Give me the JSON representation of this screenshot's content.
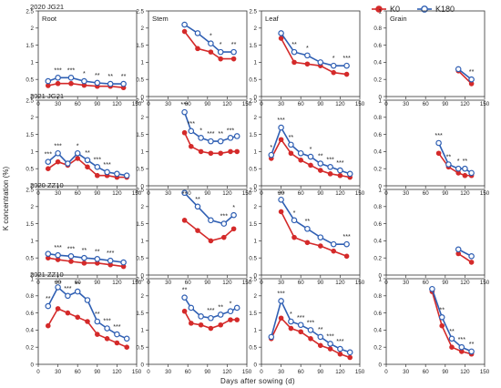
{
  "figure": {
    "ylabel": "K concentration (%)",
    "xlabel": "Days after sowing (d)"
  },
  "legend": {
    "position": "top-right",
    "items": [
      {
        "label": "K0",
        "color": "#d42a2a",
        "marker": "filled-circle"
      },
      {
        "label": "K180",
        "color": "#2f5fb3",
        "marker": "open-circle"
      }
    ]
  },
  "chart_data": [
    {
      "type": "line",
      "row_label": "2020 JG21",
      "organ": "Root",
      "xlim": [
        0,
        150
      ],
      "ylim": [
        0,
        2.5
      ],
      "x": [
        15,
        30,
        50,
        70,
        90,
        110,
        130
      ],
      "series": [
        {
          "name": "K0",
          "values": [
            0.32,
            0.38,
            0.38,
            0.33,
            0.3,
            0.3,
            0.26
          ]
        },
        {
          "name": "K180",
          "values": [
            0.45,
            0.55,
            0.55,
            0.45,
            0.4,
            0.37,
            0.37
          ]
        }
      ],
      "annotations": [
        "",
        "***",
        "***",
        "*",
        "**",
        "**",
        "**"
      ]
    },
    {
      "type": "line",
      "row_label": "",
      "organ": "Stem",
      "xlim": [
        0,
        150
      ],
      "ylim": [
        0,
        2.5
      ],
      "x": [
        55,
        75,
        95,
        110,
        130
      ],
      "series": [
        {
          "name": "K0",
          "values": [
            1.9,
            1.4,
            1.3,
            1.1,
            1.1
          ]
        },
        {
          "name": "K180",
          "values": [
            2.1,
            1.85,
            1.55,
            1.3,
            1.3
          ]
        }
      ],
      "annotations": [
        "",
        "",
        "*",
        "*",
        "**"
      ]
    },
    {
      "type": "line",
      "row_label": "",
      "organ": "Leaf",
      "xlim": [
        0,
        150
      ],
      "ylim": [
        0,
        2.5
      ],
      "x": [
        30,
        50,
        70,
        90,
        110,
        130
      ],
      "series": [
        {
          "name": "K0",
          "values": [
            1.7,
            1.0,
            0.95,
            0.9,
            0.7,
            0.65
          ]
        },
        {
          "name": "K180",
          "values": [
            1.85,
            1.3,
            1.2,
            1.0,
            0.9,
            0.9
          ]
        }
      ],
      "annotations": [
        "",
        "**",
        "*",
        "",
        "*",
        "***"
      ]
    },
    {
      "type": "line",
      "row_label": "",
      "organ": "Grain",
      "xlim": [
        0,
        150
      ],
      "ylim": [
        0,
        1
      ],
      "x": [
        110,
        130
      ],
      "series": [
        {
          "name": "K0",
          "values": [
            0.3,
            0.15
          ]
        },
        {
          "name": "K180",
          "values": [
            0.32,
            0.2
          ]
        }
      ],
      "annotations": [
        "",
        "**"
      ]
    },
    {
      "type": "line",
      "row_label": "2021 JG21",
      "organ": "",
      "xlim": [
        0,
        150
      ],
      "ylim": [
        0,
        2.5
      ],
      "x": [
        15,
        30,
        45,
        60,
        75,
        90,
        105,
        120,
        135
      ],
      "series": [
        {
          "name": "K0",
          "values": [
            0.5,
            0.7,
            0.6,
            0.8,
            0.55,
            0.3,
            0.3,
            0.25,
            0.25
          ]
        },
        {
          "name": "K180",
          "values": [
            0.7,
            0.95,
            0.65,
            0.95,
            0.75,
            0.55,
            0.4,
            0.35,
            0.3
          ]
        }
      ],
      "annotations": [
        "***",
        "***",
        "",
        "*",
        "**",
        "***",
        "***",
        "",
        ""
      ]
    },
    {
      "type": "line",
      "row_label": "",
      "organ": "",
      "xlim": [
        0,
        150
      ],
      "ylim": [
        0,
        2.5
      ],
      "x": [
        55,
        65,
        80,
        95,
        110,
        125,
        135
      ],
      "series": [
        {
          "name": "K0",
          "values": [
            1.55,
            1.15,
            1.0,
            0.95,
            0.95,
            1.0,
            1.0
          ]
        },
        {
          "name": "K180",
          "values": [
            2.15,
            1.6,
            1.4,
            1.3,
            1.3,
            1.4,
            1.45
          ]
        }
      ],
      "annotations": [
        "***",
        "***",
        "*",
        "***",
        "**",
        "***",
        ""
      ]
    },
    {
      "type": "line",
      "row_label": "",
      "organ": "",
      "xlim": [
        0,
        150
      ],
      "ylim": [
        0,
        2.5
      ],
      "x": [
        15,
        30,
        45,
        60,
        75,
        90,
        105,
        120,
        135
      ],
      "series": [
        {
          "name": "K0",
          "values": [
            0.8,
            1.35,
            0.95,
            0.75,
            0.6,
            0.45,
            0.35,
            0.3,
            0.25
          ]
        },
        {
          "name": "K180",
          "values": [
            0.9,
            1.7,
            1.2,
            0.95,
            0.85,
            0.65,
            0.55,
            0.45,
            0.35
          ]
        }
      ],
      "annotations": [
        "*",
        "***",
        "**",
        "",
        "*",
        "**",
        "***",
        "***",
        ""
      ]
    },
    {
      "type": "line",
      "row_label": "",
      "organ": "",
      "xlim": [
        0,
        150
      ],
      "ylim": [
        0,
        1
      ],
      "x": [
        80,
        95,
        110,
        120,
        130
      ],
      "series": [
        {
          "name": "K0",
          "values": [
            0.38,
            0.22,
            0.15,
            0.12,
            0.12
          ]
        },
        {
          "name": "K180",
          "values": [
            0.5,
            0.25,
            0.2,
            0.2,
            0.15
          ]
        }
      ],
      "annotations": [
        "***",
        "**",
        "*",
        "**",
        ""
      ]
    },
    {
      "type": "line",
      "row_label": "2020 ZZ10",
      "organ": "",
      "xlim": [
        0,
        150
      ],
      "ylim": [
        0,
        2.5
      ],
      "x": [
        15,
        30,
        50,
        70,
        90,
        110,
        130
      ],
      "series": [
        {
          "name": "K0",
          "values": [
            0.5,
            0.45,
            0.4,
            0.35,
            0.35,
            0.3,
            0.25
          ]
        },
        {
          "name": "K180",
          "values": [
            0.62,
            0.58,
            0.55,
            0.5,
            0.47,
            0.42,
            0.37
          ]
        }
      ],
      "annotations": [
        "",
        "***",
        "***",
        "**",
        "**",
        "***",
        ""
      ]
    },
    {
      "type": "line",
      "row_label": "",
      "organ": "",
      "xlim": [
        0,
        150
      ],
      "ylim": [
        0,
        2.5
      ],
      "x": [
        55,
        75,
        95,
        115,
        130
      ],
      "series": [
        {
          "name": "K0",
          "values": [
            1.6,
            1.3,
            1.0,
            1.1,
            1.35
          ]
        },
        {
          "name": "K180",
          "values": [
            2.4,
            2.0,
            1.6,
            1.5,
            1.75
          ]
        }
      ],
      "annotations": [
        "**",
        "**",
        "",
        "***",
        "*"
      ]
    },
    {
      "type": "line",
      "row_label": "",
      "organ": "",
      "xlim": [
        0,
        150
      ],
      "ylim": [
        0,
        2.5
      ],
      "x": [
        30,
        50,
        70,
        90,
        110,
        130
      ],
      "series": [
        {
          "name": "K0",
          "values": [
            1.85,
            1.1,
            0.95,
            0.85,
            0.7,
            0.55
          ]
        },
        {
          "name": "K180",
          "values": [
            2.2,
            1.6,
            1.35,
            1.1,
            0.9,
            0.9
          ]
        }
      ],
      "annotations": [
        "***",
        "*",
        "**",
        "",
        "",
        "***"
      ]
    },
    {
      "type": "line",
      "row_label": "",
      "organ": "",
      "xlim": [
        0,
        150
      ],
      "ylim": [
        0,
        1
      ],
      "x": [
        110,
        130
      ],
      "series": [
        {
          "name": "K0",
          "values": [
            0.25,
            0.15
          ]
        },
        {
          "name": "K180",
          "values": [
            0.3,
            0.22
          ]
        }
      ],
      "annotations": [
        "",
        ""
      ]
    },
    {
      "type": "line",
      "row_label": "2021 ZZ10",
      "organ": "",
      "xlim": [
        0,
        150
      ],
      "ylim": [
        0,
        1
      ],
      "x": [
        15,
        30,
        45,
        60,
        75,
        90,
        105,
        120,
        135
      ],
      "series": [
        {
          "name": "K0",
          "values": [
            0.45,
            0.65,
            0.6,
            0.55,
            0.5,
            0.35,
            0.3,
            0.25,
            0.2
          ]
        },
        {
          "name": "K180",
          "values": [
            0.68,
            0.9,
            0.8,
            0.85,
            0.75,
            0.5,
            0.42,
            0.35,
            0.3
          ]
        }
      ],
      "annotations": [
        "**",
        "***",
        "***",
        "**",
        "",
        "**",
        "***",
        "***",
        ""
      ]
    },
    {
      "type": "line",
      "row_label": "",
      "organ": "",
      "xlim": [
        0,
        150
      ],
      "ylim": [
        0,
        2.5
      ],
      "x": [
        55,
        65,
        80,
        95,
        110,
        125,
        135
      ],
      "series": [
        {
          "name": "K0",
          "values": [
            1.55,
            1.2,
            1.15,
            1.05,
            1.15,
            1.3,
            1.3
          ]
        },
        {
          "name": "K180",
          "values": [
            1.95,
            1.65,
            1.4,
            1.35,
            1.45,
            1.55,
            1.65
          ]
        }
      ],
      "annotations": [
        "**",
        "",
        "",
        "***",
        "**",
        "*",
        ""
      ]
    },
    {
      "type": "line",
      "row_label": "",
      "organ": "",
      "xlim": [
        0,
        150
      ],
      "ylim": [
        0,
        2.5
      ],
      "x": [
        15,
        30,
        45,
        60,
        75,
        90,
        105,
        120,
        135
      ],
      "series": [
        {
          "name": "K0",
          "values": [
            0.75,
            1.35,
            1.05,
            0.95,
            0.75,
            0.55,
            0.45,
            0.3,
            0.2
          ]
        },
        {
          "name": "K180",
          "values": [
            0.8,
            1.85,
            1.25,
            1.15,
            1.0,
            0.8,
            0.6,
            0.45,
            0.35
          ]
        }
      ],
      "annotations": [
        "",
        "***",
        "*",
        "***",
        "***",
        "**",
        "***",
        "***",
        ""
      ]
    },
    {
      "type": "line",
      "row_label": "",
      "organ": "",
      "xlim": [
        0,
        150
      ],
      "ylim": [
        0,
        1
      ],
      "x": [
        70,
        85,
        100,
        115,
        130
      ],
      "series": [
        {
          "name": "K0",
          "values": [
            0.85,
            0.45,
            0.2,
            0.15,
            0.12
          ]
        },
        {
          "name": "K180",
          "values": [
            0.88,
            0.55,
            0.3,
            0.2,
            0.15
          ]
        }
      ],
      "annotations": [
        "",
        "**",
        "**",
        "***",
        "**"
      ]
    }
  ]
}
